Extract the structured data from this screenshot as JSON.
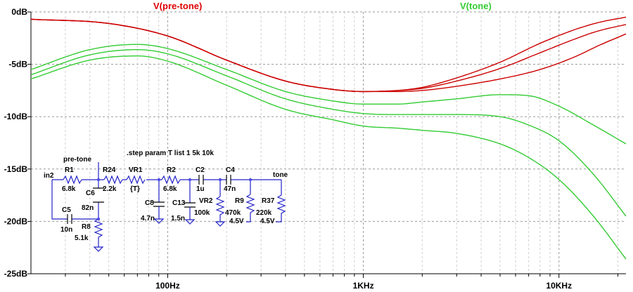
{
  "chart_data": {
    "type": "line",
    "x_scale": "log",
    "xlim_hz": [
      20,
      22000
    ],
    "ylim_db": [
      -25,
      0
    ],
    "x_ticks": [
      {
        "value": 100,
        "label": "100Hz"
      },
      {
        "value": 1000,
        "label": "1KHz"
      },
      {
        "value": 10000,
        "label": "10KHz"
      }
    ],
    "y_ticks": [
      {
        "value": 0,
        "label": "0dB"
      },
      {
        "value": -5,
        "label": "-5dB"
      },
      {
        "value": -10,
        "label": "-10dB"
      },
      {
        "value": -15,
        "label": "-15dB"
      },
      {
        "value": -20,
        "label": "-20dB"
      },
      {
        "value": -25,
        "label": "-25dB"
      }
    ],
    "grid": true,
    "grid_style": "dashed",
    "legend": [
      {
        "label": "V(pre-tone)",
        "color": "#dd0000",
        "placement": "top-left"
      },
      {
        "label": "V(tone)",
        "color": "#33cc33",
        "placement": "top-right"
      }
    ],
    "series": [
      {
        "name": "V(pre-tone)",
        "color": "#cc0000",
        "step": "1",
        "points": [
          [
            20,
            -0.7
          ],
          [
            50,
            -1.1
          ],
          [
            100,
            -2.3
          ],
          [
            200,
            -4.6
          ],
          [
            400,
            -6.6
          ],
          [
            700,
            -7.4
          ],
          [
            1000,
            -7.6
          ],
          [
            1500,
            -7.5
          ],
          [
            2000,
            -7.2
          ],
          [
            3000,
            -6.3
          ],
          [
            5000,
            -4.8
          ],
          [
            8000,
            -3.0
          ],
          [
            12000,
            -1.7
          ],
          [
            16000,
            -1.0
          ],
          [
            22000,
            -0.5
          ]
        ]
      },
      {
        "name": "V(pre-tone)",
        "color": "#cc0000",
        "step": "5k",
        "points": [
          [
            20,
            -0.7
          ],
          [
            50,
            -1.1
          ],
          [
            100,
            -2.3
          ],
          [
            200,
            -4.6
          ],
          [
            400,
            -6.6
          ],
          [
            700,
            -7.4
          ],
          [
            1000,
            -7.6
          ],
          [
            1500,
            -7.5
          ],
          [
            2000,
            -7.3
          ],
          [
            3000,
            -6.6
          ],
          [
            5000,
            -5.4
          ],
          [
            8000,
            -3.9
          ],
          [
            12000,
            -2.6
          ],
          [
            16000,
            -1.8
          ],
          [
            22000,
            -1.2
          ]
        ]
      },
      {
        "name": "V(pre-tone)",
        "color": "#cc0000",
        "step": "10k",
        "points": [
          [
            20,
            -0.7
          ],
          [
            50,
            -1.1
          ],
          [
            100,
            -2.3
          ],
          [
            200,
            -4.6
          ],
          [
            400,
            -6.6
          ],
          [
            700,
            -7.4
          ],
          [
            1000,
            -7.6
          ],
          [
            1500,
            -7.6
          ],
          [
            2000,
            -7.5
          ],
          [
            3000,
            -7.1
          ],
          [
            5000,
            -6.4
          ],
          [
            8000,
            -5.5
          ],
          [
            12000,
            -4.3
          ],
          [
            16000,
            -3.2
          ],
          [
            22000,
            -2.1
          ]
        ]
      },
      {
        "name": "V(tone)",
        "color": "#33cc33",
        "step": "1",
        "points": [
          [
            20,
            -5.5
          ],
          [
            40,
            -3.6
          ],
          [
            70,
            -3.1
          ],
          [
            100,
            -3.5
          ],
          [
            200,
            -5.5
          ],
          [
            400,
            -7.6
          ],
          [
            700,
            -8.5
          ],
          [
            1000,
            -8.8
          ],
          [
            1500,
            -8.8
          ],
          [
            2000,
            -8.6
          ],
          [
            3000,
            -8.3
          ],
          [
            5000,
            -7.9
          ],
          [
            7000,
            -8.0
          ],
          [
            10000,
            -9.0
          ],
          [
            15000,
            -10.8
          ],
          [
            22000,
            -12.6
          ]
        ]
      },
      {
        "name": "V(tone)",
        "color": "#33cc33",
        "step": "5k",
        "points": [
          [
            20,
            -6.0
          ],
          [
            40,
            -4.1
          ],
          [
            70,
            -3.6
          ],
          [
            100,
            -4.0
          ],
          [
            200,
            -6.1
          ],
          [
            400,
            -8.3
          ],
          [
            700,
            -9.3
          ],
          [
            1000,
            -9.7
          ],
          [
            1500,
            -9.8
          ],
          [
            2000,
            -9.8
          ],
          [
            3000,
            -9.8
          ],
          [
            5000,
            -10.0
          ],
          [
            7000,
            -10.8
          ],
          [
            10000,
            -12.3
          ],
          [
            15000,
            -15.5
          ],
          [
            22000,
            -19.5
          ]
        ]
      },
      {
        "name": "V(tone)",
        "color": "#33cc33",
        "step": "10k",
        "points": [
          [
            20,
            -6.4
          ],
          [
            40,
            -4.6
          ],
          [
            70,
            -4.2
          ],
          [
            100,
            -4.7
          ],
          [
            200,
            -7.0
          ],
          [
            400,
            -9.3
          ],
          [
            700,
            -10.3
          ],
          [
            1000,
            -10.9
          ],
          [
            1500,
            -11.1
          ],
          [
            2000,
            -11.3
          ],
          [
            3000,
            -11.6
          ],
          [
            5000,
            -12.6
          ],
          [
            7000,
            -13.9
          ],
          [
            10000,
            -16.0
          ],
          [
            15000,
            -19.5
          ],
          [
            22000,
            -23.6
          ]
        ]
      }
    ]
  },
  "schematic": {
    "directive": ".step param T list 1 5k 10k",
    "net_labels": {
      "pre_tone": "pre-tone",
      "in2": "in2",
      "tone": "tone"
    },
    "components": [
      {
        "ref": "R1",
        "value": "6.8k"
      },
      {
        "ref": "R24",
        "value": "2.2k"
      },
      {
        "ref": "VR1",
        "value": "{T}"
      },
      {
        "ref": "R2",
        "value": "6.8k"
      },
      {
        "ref": "C2",
        "value": "1u"
      },
      {
        "ref": "C4",
        "value": "47n"
      },
      {
        "ref": "C6",
        "value": "82n"
      },
      {
        "ref": "C5",
        "value": "10n"
      },
      {
        "ref": "R8",
        "value": "5.1k"
      },
      {
        "ref": "C8",
        "value": "4.7n"
      },
      {
        "ref": "C13",
        "value": "1.5n"
      },
      {
        "ref": "VR2",
        "value": "100k"
      },
      {
        "ref": "R9",
        "value": "470k",
        "value2": "4.5V"
      },
      {
        "ref": "R37",
        "value": "220k",
        "value2": "4.5V"
      }
    ]
  }
}
